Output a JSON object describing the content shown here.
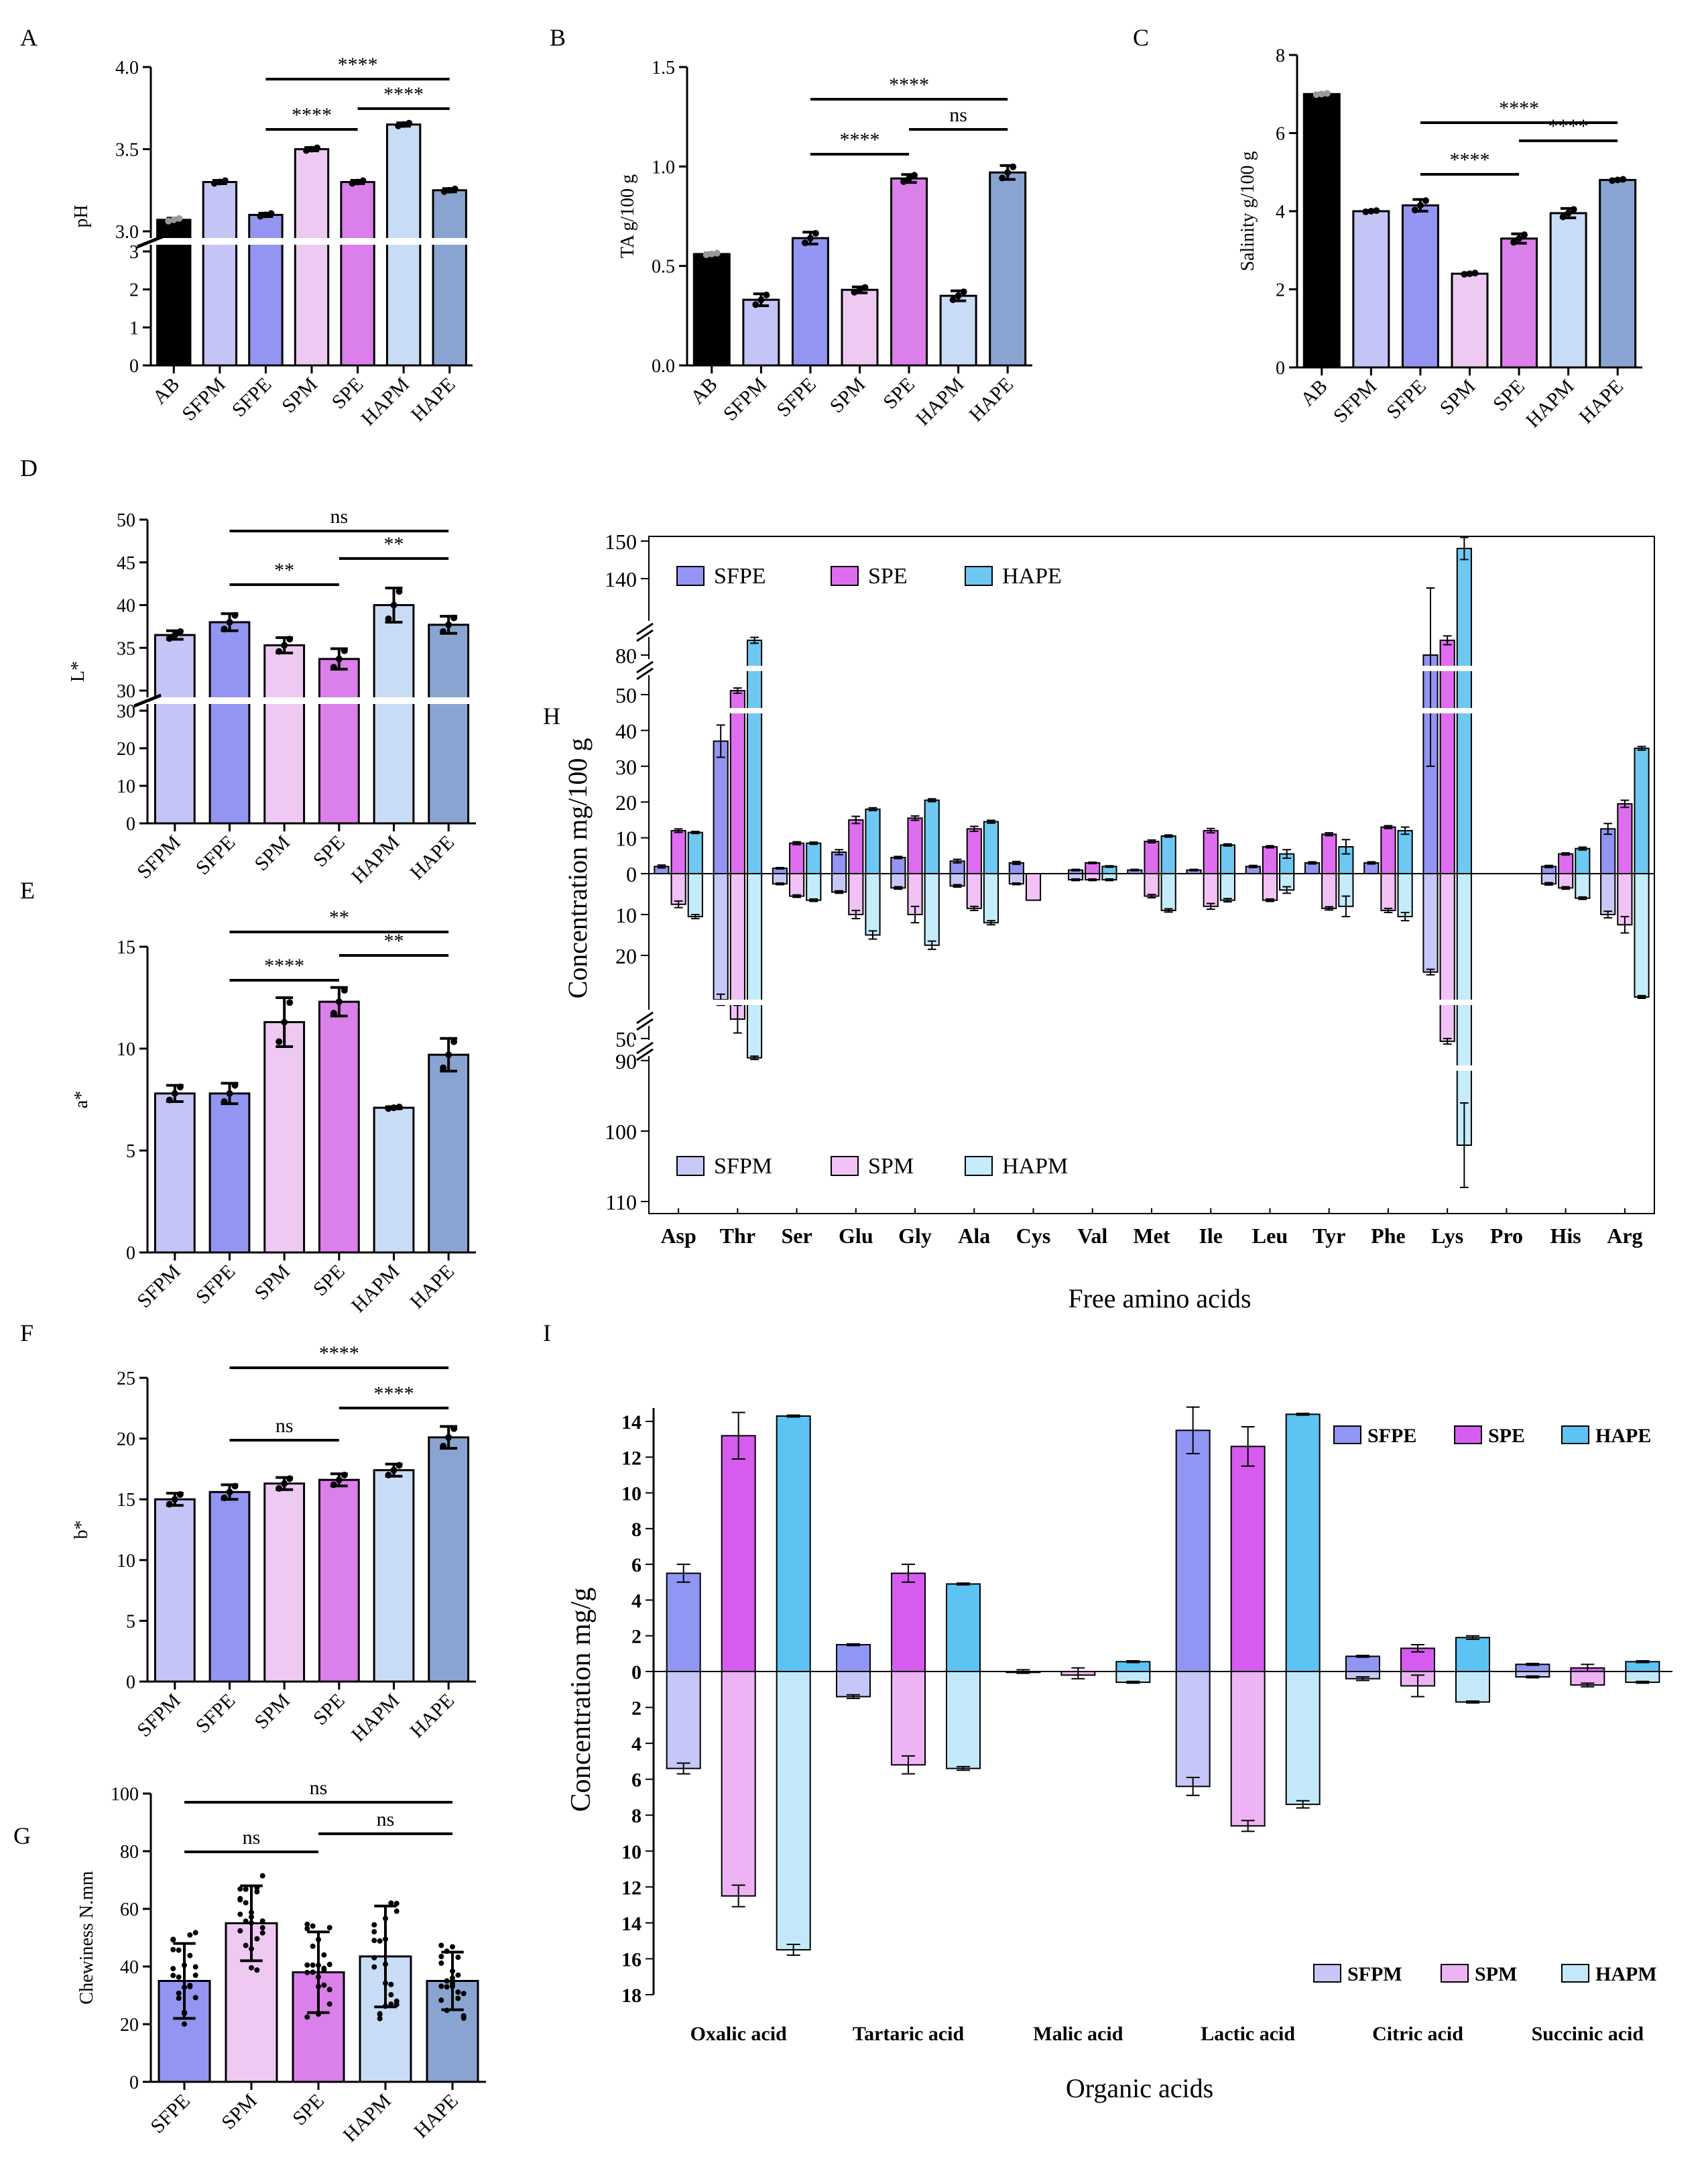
{
  "colors": {
    "AB": "#000000",
    "SFPM": "#c4c4f7",
    "SFPE": "#9494f2",
    "SPM": "#eec9f2",
    "SPE": "#db7fea",
    "HAPM": "#c8dcf5",
    "HAPE": "#8aa4d2",
    "h_SFPE": "#9494f2",
    "h_SPE": "#df6df0",
    "h_HAPE": "#6ec8f2",
    "h_SFPM": "#c8c8f8",
    "h_SPM": "#f2c2f6",
    "h_HAPM": "#c4ecfa",
    "i_SFPE": "#8f96f4",
    "i_SPE": "#d55cef",
    "i_HAPE": "#5cc3f2",
    "i_SFPM": "#c6c7f8",
    "i_SPM": "#eeb3f4",
    "i_HAPM": "#c3e8fa"
  },
  "chart_data": [
    {
      "id": "A",
      "type": "bar",
      "panel_label": "A",
      "ylabel": "pH",
      "categories": [
        "AB",
        "SFPM",
        "SFPE",
        "SPM",
        "SPE",
        "HAPM",
        "HAPE"
      ],
      "values": [
        3.07,
        3.3,
        3.1,
        3.5,
        3.3,
        3.65,
        3.25
      ],
      "errors": [
        0.01,
        0.01,
        0.01,
        0.01,
        0.01,
        0.01,
        0.01
      ],
      "upper": {
        "min": 3.0,
        "max": 4.0,
        "ticks": [
          "3.0",
          "3.5",
          "4.0"
        ]
      },
      "lower": {
        "min": 0,
        "max": 3,
        "ticks": [
          "0",
          "1",
          "2",
          "3"
        ]
      },
      "sig": [
        {
          "from": "SFPE",
          "to": "HAPE",
          "label": "****"
        },
        {
          "from": "SFPE",
          "to": "SPE",
          "label": "****"
        },
        {
          "from": "SPE",
          "to": "HAPE",
          "label": "****"
        }
      ]
    },
    {
      "id": "B",
      "type": "bar",
      "panel_label": "B",
      "ylabel": "TA g/100 g",
      "categories": [
        "AB",
        "SFPM",
        "SFPE",
        "SPM",
        "SPE",
        "HAPM",
        "HAPE"
      ],
      "values": [
        0.56,
        0.33,
        0.64,
        0.38,
        0.94,
        0.35,
        0.97
      ],
      "errors": [
        0.005,
        0.03,
        0.03,
        0.015,
        0.02,
        0.025,
        0.035
      ],
      "ylim": [
        0,
        1.5
      ],
      "ticks": [
        "0.0",
        "0.5",
        "1.0",
        "1.5"
      ],
      "sig": [
        {
          "from": "SFPE",
          "to": "HAPE",
          "label": "****"
        },
        {
          "from": "SFPE",
          "to": "SPE",
          "label": "****"
        },
        {
          "from": "SPE",
          "to": "HAPE",
          "label": "ns"
        }
      ]
    },
    {
      "id": "C",
      "type": "bar",
      "panel_label": "C",
      "ylabel": "Salinity g/100 g",
      "categories": [
        "AB",
        "SFPM",
        "SFPE",
        "SPM",
        "SPE",
        "HAPM",
        "HAPE"
      ],
      "values": [
        7.0,
        4.0,
        4.15,
        2.4,
        3.3,
        3.95,
        4.8
      ],
      "errors": [
        0.02,
        0.02,
        0.15,
        0.02,
        0.12,
        0.12,
        0.02
      ],
      "ylim": [
        0,
        8
      ],
      "ticks": [
        "0",
        "2",
        "4",
        "6",
        "8"
      ],
      "sig": [
        {
          "from": "SFPE",
          "to": "HAPE",
          "label": "****"
        },
        {
          "from": "SFPE",
          "to": "SPE",
          "label": "****"
        },
        {
          "from": "SPE",
          "to": "HAPE",
          "label": "****"
        }
      ]
    },
    {
      "id": "D",
      "type": "bar",
      "panel_label": "D",
      "ylabel": "L*",
      "categories": [
        "SFPM",
        "SFPE",
        "SPM",
        "SPE",
        "HAPM",
        "HAPE"
      ],
      "values": [
        36.5,
        38.0,
        35.3,
        33.7,
        40.0,
        37.7
      ],
      "errors": [
        0.5,
        1.0,
        0.9,
        1.2,
        2.0,
        1.0
      ],
      "upper": {
        "min": 30,
        "max": 50,
        "ticks": [
          "30",
          "35",
          "40",
          "45",
          "50"
        ]
      },
      "lower": {
        "min": 0,
        "max": 30,
        "ticks": [
          "0",
          "10",
          "20",
          "30"
        ]
      },
      "sig": [
        {
          "from": "SFPE",
          "to": "HAPE",
          "label": "ns"
        },
        {
          "from": "SFPE",
          "to": "SPE",
          "label": "**"
        },
        {
          "from": "SPE",
          "to": "HAPE",
          "label": "**"
        }
      ]
    },
    {
      "id": "E",
      "type": "bar",
      "panel_label": "E",
      "ylabel": "a*",
      "categories": [
        "SFPM",
        "SFPE",
        "SPM",
        "SPE",
        "HAPM",
        "HAPE"
      ],
      "values": [
        7.8,
        7.8,
        11.3,
        12.3,
        7.1,
        9.7
      ],
      "errors": [
        0.4,
        0.5,
        1.2,
        0.7,
        0.05,
        0.8
      ],
      "ylim": [
        0,
        15
      ],
      "ticks": [
        "0",
        "5",
        "10",
        "15"
      ],
      "sig": [
        {
          "from": "SFPE",
          "to": "HAPE",
          "label": "**"
        },
        {
          "from": "SFPE",
          "to": "SPE",
          "label": "****"
        },
        {
          "from": "SPE",
          "to": "HAPE",
          "label": "**"
        }
      ]
    },
    {
      "id": "F",
      "type": "bar",
      "panel_label": "F",
      "ylabel": "b*",
      "categories": [
        "SFPM",
        "SFPE",
        "SPM",
        "SPE",
        "HAPM",
        "HAPE"
      ],
      "values": [
        15.0,
        15.6,
        16.3,
        16.6,
        17.4,
        20.1
      ],
      "errors": [
        0.5,
        0.6,
        0.5,
        0.5,
        0.5,
        0.9
      ],
      "ylim": [
        0,
        25
      ],
      "ticks": [
        "0",
        "5",
        "10",
        "15",
        "20",
        "25"
      ],
      "sig": [
        {
          "from": "SFPE",
          "to": "HAPE",
          "label": "****"
        },
        {
          "from": "SFPE",
          "to": "SPE",
          "label": "ns"
        },
        {
          "from": "SPE",
          "to": "HAPE",
          "label": "****"
        }
      ]
    },
    {
      "id": "G",
      "type": "bar",
      "panel_label": "G",
      "ylabel": "Chewiness  N.mm",
      "categories": [
        "SFPE",
        "SPM",
        "SPE",
        "HAPM",
        "HAPE"
      ],
      "values": [
        35,
        55,
        38,
        43.5,
        35
      ],
      "errors": [
        13,
        13,
        14,
        17.5,
        10
      ],
      "ylim": [
        0,
        100
      ],
      "ticks": [
        "0",
        "20",
        "40",
        "60",
        "80",
        "100"
      ],
      "sig": [
        {
          "from": "SFPE",
          "to": "HAPE",
          "label": "ns"
        },
        {
          "from": "SFPE",
          "to": "SPE",
          "label": "ns"
        },
        {
          "from": "SPE",
          "to": "HAPE",
          "label": "ns"
        }
      ]
    },
    {
      "id": "H",
      "type": "bar",
      "panel_label": "H",
      "ylabel": "Concentration mg/100 g",
      "xlabel": "Free amino acids",
      "categories": [
        "Asp",
        "Thr",
        "Ser",
        "Glu",
        "Gly",
        "Ala",
        "Cys",
        "Val",
        "Met",
        "Ile",
        "Leu",
        "Tyr",
        "Phe",
        "Lys",
        "Pro",
        "His",
        "Arg"
      ],
      "series": [
        {
          "name": "SFPE",
          "direction": "up",
          "values": [
            2,
            37,
            1.5,
            6,
            4.5,
            3.5,
            3,
            1,
            1,
            1,
            2,
            3,
            3,
            80,
            0,
            2,
            12.5
          ],
          "errors": [
            0.4,
            4.5,
            0.2,
            0.7,
            0.3,
            0.5,
            0.4,
            0.2,
            0.2,
            0.2,
            0.3,
            0.3,
            0.3,
            50,
            0,
            0.3,
            1.5
          ]
        },
        {
          "name": "SPE",
          "direction": "up",
          "values": [
            12,
            53,
            8.5,
            15,
            15.5,
            12.5,
            0,
            3,
            9,
            12,
            7.5,
            11,
            13,
            90,
            0,
            5.5,
            19.5
          ],
          "errors": [
            0.5,
            2,
            0.4,
            1,
            0.6,
            0.7,
            0,
            0.2,
            0.4,
            0.6,
            0.3,
            0.4,
            0.4,
            3,
            0,
            0.3,
            1
          ]
        },
        {
          "name": "HAPE",
          "direction": "up",
          "values": [
            11.5,
            90,
            8.5,
            18,
            20.5,
            14.5,
            0,
            2,
            10.5,
            8,
            5.5,
            7.5,
            12,
            148,
            0,
            7,
            35
          ],
          "errors": [
            0.3,
            2,
            0.3,
            0.4,
            0.4,
            0.4,
            0,
            0.2,
            0.3,
            0.3,
            1.2,
            2,
            1,
            3,
            0,
            0.4,
            0.5
          ]
        },
        {
          "name": "SFPM",
          "direction": "down",
          "values": [
            0,
            36,
            2.5,
            4.5,
            3.5,
            3,
            2.5,
            1.5,
            0,
            0,
            0,
            0,
            0,
            26,
            0,
            2.5,
            10
          ],
          "errors": [
            0,
            2,
            0.2,
            0.3,
            0.3,
            0.3,
            0.2,
            0.2,
            0,
            0,
            0,
            0,
            0,
            1,
            0,
            0.3,
            0.8
          ]
        },
        {
          "name": "SPM",
          "direction": "down",
          "values": [
            7.5,
            43,
            5.5,
            10,
            10,
            8.5,
            6.5,
            1.5,
            5.5,
            8,
            6.5,
            8.5,
            9,
            55,
            0,
            3.5,
            12.5
          ],
          "errors": [
            0.8,
            5,
            0.3,
            1,
            2,
            0.5,
            0,
            0.2,
            0.4,
            0.7,
            0.3,
            0.4,
            0.5,
            5,
            0,
            0.3,
            2
          ]
        },
        {
          "name": "HAPM",
          "direction": "down",
          "values": [
            10.5,
            85,
            6.5,
            15,
            17.5,
            12,
            0,
            1.5,
            9,
            6.5,
            4,
            8,
            10.5,
            102,
            0,
            6,
            35
          ],
          "errors": [
            0.5,
            3,
            0.3,
            1,
            1,
            0.5,
            0,
            0.2,
            0.4,
            0.4,
            0.8,
            2.5,
            1,
            6,
            0,
            0.3,
            0.5
          ]
        }
      ],
      "axis_up": {
        "segments": [
          [
            0,
            50
          ],
          [
            50,
            80
          ],
          [
            140,
            150
          ]
        ],
        "ticks": [
          "0",
          "10",
          "20",
          "30",
          "40",
          "50",
          "80",
          "140",
          "150"
        ]
      },
      "axis_down": {
        "segments": [
          [
            0,
            20
          ],
          [
            50,
            50
          ],
          [
            90,
            110
          ]
        ],
        "ticks": [
          "10",
          "20",
          "50",
          "90",
          "100",
          "110"
        ]
      }
    },
    {
      "id": "I",
      "type": "bar",
      "panel_label": "I",
      "ylabel": "Concentration mg/g",
      "xlabel": "Organic acids",
      "categories": [
        "Oxalic acid",
        "Tartaric acid",
        "Malic acid",
        "Lactic acid",
        "Citric acid",
        "Succinic acid"
      ],
      "series": [
        {
          "name": "SFPE",
          "direction": "up",
          "values": [
            5.5,
            1.5,
            0,
            13.5,
            0.85,
            0.4
          ],
          "errors": [
            0.5,
            0.05,
            0.1,
            1.3,
            0.05,
            0.05
          ]
        },
        {
          "name": "SPE",
          "direction": "up",
          "values": [
            13.2,
            5.5,
            0,
            12.6,
            1.3,
            0.2
          ],
          "errors": [
            1.3,
            0.5,
            0.2,
            1.1,
            0.2,
            0.2
          ]
        },
        {
          "name": "HAPE",
          "direction": "up",
          "values": [
            14.3,
            4.9,
            0.55,
            14.4,
            1.9,
            0.55
          ],
          "errors": [
            0.05,
            0.05,
            0.05,
            0.05,
            0.1,
            0.05
          ]
        },
        {
          "name": "SFPM",
          "direction": "down",
          "values": [
            5.4,
            1.4,
            0.05,
            6.4,
            0.4,
            0.3
          ],
          "errors": [
            0.3,
            0.1,
            0.05,
            0.5,
            0.1,
            0.05
          ]
        },
        {
          "name": "SPM",
          "direction": "down",
          "values": [
            12.5,
            5.2,
            0.2,
            8.6,
            0.8,
            0.75
          ],
          "errors": [
            0.6,
            0.5,
            0.2,
            0.3,
            0.6,
            0.1
          ]
        },
        {
          "name": "HAPM",
          "direction": "down",
          "values": [
            15.5,
            5.4,
            0.6,
            7.4,
            1.7,
            0.6
          ],
          "errors": [
            0.3,
            0.1,
            0.05,
            0.2,
            0.05,
            0.05
          ]
        }
      ],
      "up_ticks": [
        "0",
        "2",
        "4",
        "6",
        "8",
        "10",
        "12",
        "14"
      ],
      "down_ticks": [
        "2",
        "4",
        "6",
        "8",
        "10",
        "12",
        "14",
        "16",
        "18"
      ]
    }
  ]
}
